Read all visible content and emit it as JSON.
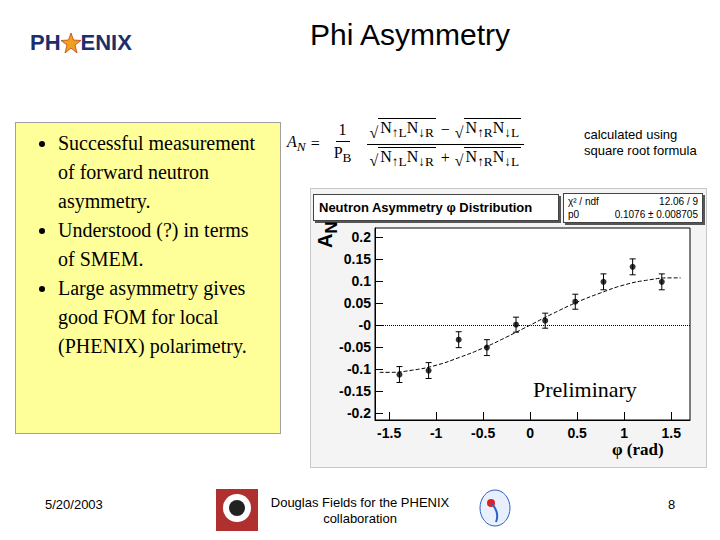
{
  "header": {
    "logo": "PHENIX",
    "title": "Phi Asymmetry"
  },
  "bullets": [
    "Successful measurement of forward neutron asymmetry.",
    "Understood (?) in terms of SMEM.",
    "Large asymmetry gives good FOM for local (PHENIX) polarimetry."
  ],
  "formula": {
    "lhs": {
      "base": "A",
      "sub": "N"
    },
    "relation": "=",
    "radical": "√",
    "factor": {
      "numerator": "1",
      "denominator": {
        "base": "P",
        "sub": "B"
      }
    },
    "numerator_terms": [
      [
        {
          "base": "N",
          "sub": "↑L"
        },
        {
          "base": "N",
          "sub": "↓R"
        }
      ],
      [
        {
          "base": "N",
          "sub": "↑R"
        },
        {
          "base": "N",
          "sub": "↓L"
        }
      ]
    ],
    "numerator_operator": "−",
    "denominator_terms": [
      [
        {
          "base": "N",
          "sub": "↑L"
        },
        {
          "base": "N",
          "sub": "↓R"
        }
      ],
      [
        {
          "base": "N",
          "sub": "↑R"
        },
        {
          "base": "N",
          "sub": "↓L"
        }
      ]
    ],
    "denominator_operator": "+",
    "note": "calculated using square root formula"
  },
  "chart_data": {
    "type": "scatter",
    "title": "Neutron Asymmetry φ Distribution",
    "stats": [
      {
        "label": "χ² / ndf",
        "value": "12.06 / 9"
      },
      {
        "label": "p0",
        "value": "0.1076 ± 0.008705"
      }
    ],
    "x_label": "φ (rad)",
    "y_label": {
      "base": "A",
      "sub": "N"
    },
    "annotation": "Preliminary",
    "x": [
      -1.39,
      -1.08,
      -0.76,
      -0.46,
      -0.15,
      0.16,
      0.48,
      0.78,
      1.09,
      1.4
    ],
    "values": [
      -0.112,
      -0.103,
      -0.033,
      -0.051,
      0.001,
      0.01,
      0.053,
      0.098,
      0.132,
      0.098
    ],
    "errors": [
      0.018,
      0.018,
      0.018,
      0.018,
      0.017,
      0.017,
      0.017,
      0.018,
      0.018,
      0.018
    ],
    "color": "#000000",
    "marker": "circle",
    "fit": {
      "x": [
        -1.6,
        -1.5,
        -1.25,
        -1.0,
        -0.75,
        -0.5,
        -0.25,
        0.0,
        0.25,
        0.5,
        0.75,
        1.0,
        1.25,
        1.5,
        1.6
      ],
      "values": [
        -0.107,
        -0.107,
        -0.102,
        -0.091,
        -0.073,
        -0.052,
        -0.027,
        0.0,
        0.027,
        0.052,
        0.073,
        0.091,
        0.102,
        0.107,
        0.107
      ],
      "line_style": "dashed"
    },
    "reference_y": 0,
    "xlim": [
      -1.65,
      1.7
    ],
    "ylim": [
      -0.215,
      0.22
    ],
    "xticks": [
      -1.5,
      -1,
      -0.5,
      0,
      0.5,
      1,
      1.5
    ],
    "yticks": [
      0.2,
      0.15,
      0.1,
      0.05,
      {
        "value": 0,
        "label": "-0"
      },
      -0.05,
      -0.1,
      -0.15,
      -0.2
    ],
    "grid": false
  },
  "footer": {
    "date": "5/20/2003",
    "author": "Douglas Fields for the PHENIX collaboration",
    "page": "8"
  }
}
